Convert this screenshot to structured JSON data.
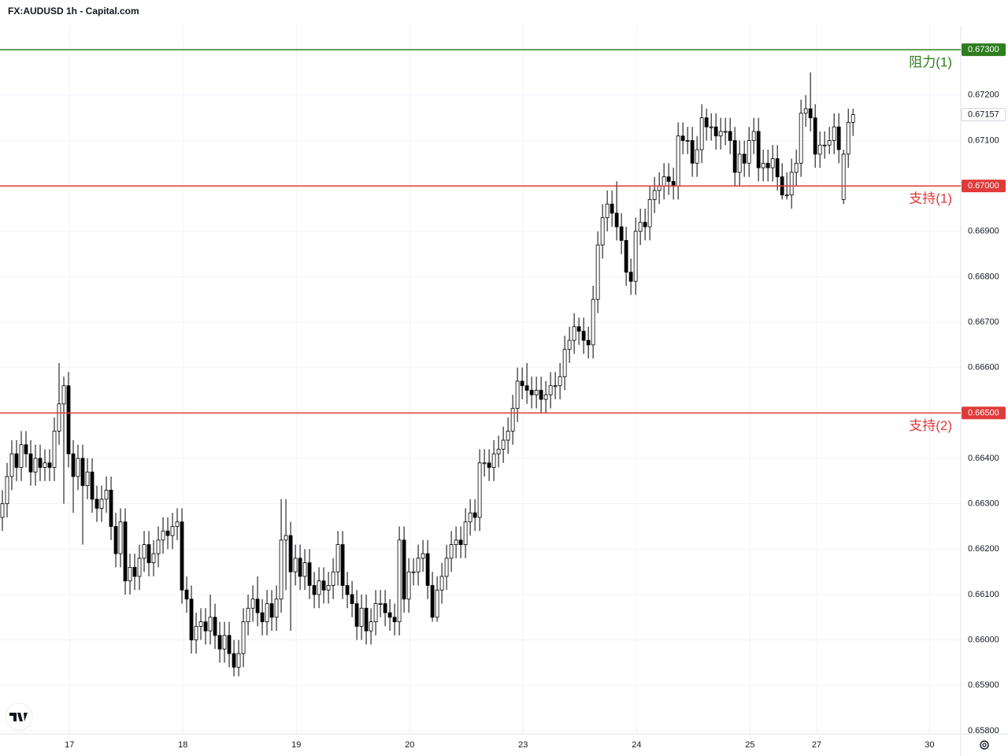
{
  "chart_data": {
    "type": "candlestick",
    "title": "FX:AUDUSD 1h - Capital.com",
    "candles": [
      [
        0.6627,
        0.6633,
        0.6624,
        0.663
      ],
      [
        0.663,
        0.6639,
        0.6627,
        0.6636
      ],
      [
        0.6636,
        0.6644,
        0.6633,
        0.6641
      ],
      [
        0.6641,
        0.6644,
        0.6635,
        0.6638
      ],
      [
        0.6638,
        0.6646,
        0.6635,
        0.6643
      ],
      [
        0.6643,
        0.6646,
        0.6638,
        0.6641
      ],
      [
        0.6641,
        0.6644,
        0.6634,
        0.6637
      ],
      [
        0.6637,
        0.6643,
        0.6634,
        0.664
      ],
      [
        0.664,
        0.6643,
        0.6635,
        0.6638
      ],
      [
        0.6638,
        0.6642,
        0.6635,
        0.6639
      ],
      [
        0.6639,
        0.6642,
        0.6635,
        0.6638
      ],
      [
        0.6638,
        0.6649,
        0.6635,
        0.6646
      ],
      [
        0.6646,
        0.6661,
        0.6643,
        0.6652
      ],
      [
        0.6652,
        0.6658,
        0.663,
        0.6656
      ],
      [
        0.6656,
        0.6659,
        0.6638,
        0.6641
      ],
      [
        0.6641,
        0.6644,
        0.6628,
        0.6636
      ],
      [
        0.6636,
        0.6643,
        0.6633,
        0.664
      ],
      [
        0.664,
        0.6643,
        0.6621,
        0.6634
      ],
      [
        0.6634,
        0.664,
        0.6631,
        0.6637
      ],
      [
        0.6637,
        0.664,
        0.6628,
        0.6631
      ],
      [
        0.6631,
        0.6634,
        0.6626,
        0.6629
      ],
      [
        0.6629,
        0.6634,
        0.6626,
        0.6631
      ],
      [
        0.6631,
        0.6636,
        0.6628,
        0.6633
      ],
      [
        0.6633,
        0.6636,
        0.6622,
        0.6625
      ],
      [
        0.6625,
        0.6628,
        0.6616,
        0.6619
      ],
      [
        0.6619,
        0.6629,
        0.6616,
        0.6626
      ],
      [
        0.6626,
        0.6629,
        0.661,
        0.6613
      ],
      [
        0.6613,
        0.6619,
        0.661,
        0.6616
      ],
      [
        0.6616,
        0.6619,
        0.6611,
        0.6614
      ],
      [
        0.6614,
        0.6621,
        0.6611,
        0.6618
      ],
      [
        0.6618,
        0.6624,
        0.6615,
        0.6621
      ],
      [
        0.6621,
        0.6624,
        0.6614,
        0.6617
      ],
      [
        0.6617,
        0.6622,
        0.6614,
        0.6619
      ],
      [
        0.6619,
        0.6625,
        0.6616,
        0.6622
      ],
      [
        0.6622,
        0.6627,
        0.6619,
        0.6624
      ],
      [
        0.6624,
        0.6627,
        0.662,
        0.6623
      ],
      [
        0.6623,
        0.6628,
        0.662,
        0.6625
      ],
      [
        0.6625,
        0.6629,
        0.6622,
        0.6626
      ],
      [
        0.6626,
        0.6629,
        0.6608,
        0.6611
      ],
      [
        0.6611,
        0.6614,
        0.6606,
        0.6609
      ],
      [
        0.6609,
        0.6612,
        0.6597,
        0.66
      ],
      [
        0.66,
        0.6606,
        0.6597,
        0.6603
      ],
      [
        0.6603,
        0.6607,
        0.66,
        0.6604
      ],
      [
        0.6604,
        0.6607,
        0.6599,
        0.6602
      ],
      [
        0.6602,
        0.661,
        0.6599,
        0.6605
      ],
      [
        0.6605,
        0.6608,
        0.6598,
        0.6601
      ],
      [
        0.6601,
        0.6604,
        0.6595,
        0.6598
      ],
      [
        0.6598,
        0.6604,
        0.6595,
        0.6601
      ],
      [
        0.6601,
        0.6604,
        0.6594,
        0.6597
      ],
      [
        0.6597,
        0.66,
        0.6592,
        0.6594
      ],
      [
        0.6594,
        0.66,
        0.6592,
        0.6597
      ],
      [
        0.6597,
        0.6607,
        0.6594,
        0.6604
      ],
      [
        0.6604,
        0.661,
        0.6601,
        0.6607
      ],
      [
        0.6607,
        0.6612,
        0.6604,
        0.6609
      ],
      [
        0.6609,
        0.6614,
        0.6603,
        0.6606
      ],
      [
        0.6606,
        0.6609,
        0.6601,
        0.6604
      ],
      [
        0.6604,
        0.6611,
        0.6601,
        0.6608
      ],
      [
        0.6608,
        0.6611,
        0.6602,
        0.6605
      ],
      [
        0.6605,
        0.6612,
        0.6602,
        0.6609
      ],
      [
        0.6609,
        0.6631,
        0.6606,
        0.6622
      ],
      [
        0.6622,
        0.6631,
        0.6611,
        0.6623
      ],
      [
        0.6623,
        0.6626,
        0.6602,
        0.6615
      ],
      [
        0.6615,
        0.6621,
        0.6612,
        0.6618
      ],
      [
        0.6618,
        0.6621,
        0.6611,
        0.6614
      ],
      [
        0.6614,
        0.662,
        0.6611,
        0.6617
      ],
      [
        0.6617,
        0.662,
        0.6609,
        0.6612
      ],
      [
        0.6612,
        0.6615,
        0.6607,
        0.661
      ],
      [
        0.661,
        0.6616,
        0.6607,
        0.6613
      ],
      [
        0.6613,
        0.6616,
        0.6608,
        0.6611
      ],
      [
        0.6611,
        0.6615,
        0.6608,
        0.6612
      ],
      [
        0.6612,
        0.6618,
        0.6609,
        0.6615
      ],
      [
        0.6615,
        0.6624,
        0.6612,
        0.6621
      ],
      [
        0.6621,
        0.6624,
        0.6609,
        0.6612
      ],
      [
        0.6612,
        0.6615,
        0.6607,
        0.661
      ],
      [
        0.661,
        0.6613,
        0.6605,
        0.6608
      ],
      [
        0.6608,
        0.6611,
        0.66,
        0.6603
      ],
      [
        0.6603,
        0.661,
        0.66,
        0.6607
      ],
      [
        0.6607,
        0.661,
        0.6599,
        0.6602
      ],
      [
        0.6602,
        0.6607,
        0.6599,
        0.6604
      ],
      [
        0.6604,
        0.6611,
        0.6601,
        0.6608
      ],
      [
        0.6608,
        0.6611,
        0.6605,
        0.6608
      ],
      [
        0.6608,
        0.6611,
        0.6603,
        0.6606
      ],
      [
        0.6606,
        0.6609,
        0.6602,
        0.6605
      ],
      [
        0.6605,
        0.6608,
        0.6601,
        0.6604
      ],
      [
        0.6604,
        0.6625,
        0.6601,
        0.6622
      ],
      [
        0.6622,
        0.6625,
        0.6606,
        0.6609
      ],
      [
        0.6609,
        0.6618,
        0.6606,
        0.6615
      ],
      [
        0.6615,
        0.6618,
        0.6612,
        0.6615
      ],
      [
        0.6615,
        0.6621,
        0.6612,
        0.6618
      ],
      [
        0.6618,
        0.6622,
        0.6615,
        0.6619
      ],
      [
        0.6619,
        0.6622,
        0.6609,
        0.6612
      ],
      [
        0.6612,
        0.6615,
        0.6604,
        0.6605
      ],
      [
        0.6605,
        0.6614,
        0.6604,
        0.6611
      ],
      [
        0.6611,
        0.6617,
        0.6608,
        0.6614
      ],
      [
        0.6614,
        0.6621,
        0.6611,
        0.6618
      ],
      [
        0.6618,
        0.6624,
        0.6615,
        0.6621
      ],
      [
        0.6621,
        0.6625,
        0.6618,
        0.6622
      ],
      [
        0.6622,
        0.6625,
        0.6618,
        0.6621
      ],
      [
        0.6621,
        0.6629,
        0.6618,
        0.6626
      ],
      [
        0.6626,
        0.6631,
        0.6623,
        0.6628
      ],
      [
        0.6628,
        0.6631,
        0.6624,
        0.6627
      ],
      [
        0.6627,
        0.6642,
        0.6624,
        0.6639
      ],
      [
        0.6639,
        0.6642,
        0.6636,
        0.6639
      ],
      [
        0.6639,
        0.6642,
        0.6635,
        0.6638
      ],
      [
        0.6638,
        0.6644,
        0.6635,
        0.6641
      ],
      [
        0.6641,
        0.6645,
        0.6638,
        0.6642
      ],
      [
        0.6642,
        0.6647,
        0.6639,
        0.6644
      ],
      [
        0.6644,
        0.6649,
        0.6641,
        0.6646
      ],
      [
        0.6646,
        0.6654,
        0.6643,
        0.6651
      ],
      [
        0.6651,
        0.666,
        0.6648,
        0.6657
      ],
      [
        0.6657,
        0.666,
        0.6653,
        0.6656
      ],
      [
        0.6656,
        0.6661,
        0.6652,
        0.6655
      ],
      [
        0.6655,
        0.6658,
        0.6651,
        0.6654
      ],
      [
        0.6654,
        0.6658,
        0.6651,
        0.6655
      ],
      [
        0.6655,
        0.6658,
        0.665,
        0.6653
      ],
      [
        0.6653,
        0.6657,
        0.665,
        0.6654
      ],
      [
        0.6654,
        0.6659,
        0.6651,
        0.6656
      ],
      [
        0.6656,
        0.6659,
        0.6653,
        0.6656
      ],
      [
        0.6656,
        0.6661,
        0.6653,
        0.6658
      ],
      [
        0.6658,
        0.6667,
        0.6655,
        0.6664
      ],
      [
        0.6664,
        0.6669,
        0.6661,
        0.6666
      ],
      [
        0.6666,
        0.6672,
        0.6663,
        0.6669
      ],
      [
        0.6669,
        0.6671,
        0.6665,
        0.6668
      ],
      [
        0.6668,
        0.6671,
        0.6663,
        0.6666
      ],
      [
        0.6666,
        0.6669,
        0.6662,
        0.6665
      ],
      [
        0.6665,
        0.6678,
        0.6662,
        0.6675
      ],
      [
        0.6675,
        0.669,
        0.6672,
        0.6687
      ],
      [
        0.6687,
        0.6696,
        0.6684,
        0.6693
      ],
      [
        0.6693,
        0.6699,
        0.669,
        0.6696
      ],
      [
        0.6696,
        0.6699,
        0.6691,
        0.6694
      ],
      [
        0.6694,
        0.6701,
        0.6688,
        0.6691
      ],
      [
        0.6691,
        0.6694,
        0.6685,
        0.6688
      ],
      [
        0.6688,
        0.6691,
        0.6678,
        0.6681
      ],
      [
        0.6681,
        0.6684,
        0.6676,
        0.6679
      ],
      [
        0.6679,
        0.6693,
        0.6676,
        0.669
      ],
      [
        0.669,
        0.6695,
        0.6687,
        0.6692
      ],
      [
        0.6692,
        0.6695,
        0.6688,
        0.6691
      ],
      [
        0.6691,
        0.67,
        0.6688,
        0.6697
      ],
      [
        0.6697,
        0.6702,
        0.6694,
        0.6699
      ],
      [
        0.6699,
        0.6703,
        0.6696,
        0.67
      ],
      [
        0.67,
        0.6705,
        0.6697,
        0.6702
      ],
      [
        0.6702,
        0.6705,
        0.6698,
        0.6701
      ],
      [
        0.6701,
        0.6704,
        0.6697,
        0.67
      ],
      [
        0.67,
        0.6714,
        0.6697,
        0.6711
      ],
      [
        0.6711,
        0.6714,
        0.6707,
        0.671
      ],
      [
        0.671,
        0.6713,
        0.6707,
        0.671
      ],
      [
        0.671,
        0.6713,
        0.6702,
        0.6705
      ],
      [
        0.6705,
        0.6711,
        0.6702,
        0.6708
      ],
      [
        0.6708,
        0.6718,
        0.6705,
        0.6715
      ],
      [
        0.6715,
        0.6717,
        0.671,
        0.6713
      ],
      [
        0.6713,
        0.6716,
        0.671,
        0.6713
      ],
      [
        0.6713,
        0.6716,
        0.6708,
        0.6711
      ],
      [
        0.6711,
        0.6715,
        0.6708,
        0.6712
      ],
      [
        0.6712,
        0.6715,
        0.6709,
        0.6712
      ],
      [
        0.6712,
        0.6715,
        0.6707,
        0.671
      ],
      [
        0.671,
        0.6713,
        0.67,
        0.6703
      ],
      [
        0.6703,
        0.671,
        0.67,
        0.6707
      ],
      [
        0.6707,
        0.671,
        0.6702,
        0.6705
      ],
      [
        0.6705,
        0.6713,
        0.6702,
        0.671
      ],
      [
        0.671,
        0.6715,
        0.6707,
        0.6712
      ],
      [
        0.6712,
        0.6715,
        0.6701,
        0.6704
      ],
      [
        0.6704,
        0.6708,
        0.6701,
        0.6705
      ],
      [
        0.6705,
        0.6708,
        0.6701,
        0.6704
      ],
      [
        0.6704,
        0.6709,
        0.6701,
        0.6706
      ],
      [
        0.6706,
        0.6709,
        0.6699,
        0.6702
      ],
      [
        0.6702,
        0.6705,
        0.6697,
        0.6698
      ],
      [
        0.6698,
        0.6703,
        0.6697,
        0.6698
      ],
      [
        0.6698,
        0.6706,
        0.6695,
        0.6703
      ],
      [
        0.6703,
        0.6708,
        0.67,
        0.6705
      ],
      [
        0.6705,
        0.6719,
        0.6702,
        0.6716
      ],
      [
        0.6716,
        0.672,
        0.6713,
        0.6717
      ],
      [
        0.6717,
        0.6725,
        0.6712,
        0.6715
      ],
      [
        0.6715,
        0.6718,
        0.6704,
        0.6707
      ],
      [
        0.6707,
        0.6712,
        0.6704,
        0.6709
      ],
      [
        0.6709,
        0.6712,
        0.6706,
        0.6709
      ],
      [
        0.6709,
        0.6713,
        0.6707,
        0.671
      ],
      [
        0.671,
        0.6716,
        0.6707,
        0.6713
      ],
      [
        0.6713,
        0.6716,
        0.6705,
        0.6708
      ],
      [
        0.6697,
        0.6708,
        0.6696,
        0.6707
      ],
      [
        0.6707,
        0.6717,
        0.6704,
        0.6714
      ],
      [
        0.6714,
        0.6717,
        0.6711,
        0.67157
      ]
    ],
    "up_color": "#ffffff",
    "down_color": "#000000",
    "wick_color": "#000000",
    "ylim": [
      0.65793,
      0.67354
    ],
    "yticks": [
      {
        "value": 0.658,
        "label": "0.65800"
      },
      {
        "value": 0.659,
        "label": "0.65900"
      },
      {
        "value": 0.66,
        "label": "0.66000"
      },
      {
        "value": 0.661,
        "label": "0.66100"
      },
      {
        "value": 0.662,
        "label": "0.66200"
      },
      {
        "value": 0.663,
        "label": "0.66300"
      },
      {
        "value": 0.664,
        "label": "0.66400"
      },
      {
        "value": 0.666,
        "label": "0.66600"
      },
      {
        "value": 0.667,
        "label": "0.66700"
      },
      {
        "value": 0.668,
        "label": "0.66800"
      },
      {
        "value": 0.669,
        "label": "0.66900"
      },
      {
        "value": 0.671,
        "label": "0.67100"
      },
      {
        "value": 0.672,
        "label": "0.67200"
      }
    ],
    "xlim": [
      -0.5,
      202.8
    ],
    "xticks": [
      {
        "value": 14.2,
        "label": "17"
      },
      {
        "value": 38.2,
        "label": "18"
      },
      {
        "value": 62.2,
        "label": "19"
      },
      {
        "value": 86.2,
        "label": "20"
      },
      {
        "value": 110.2,
        "label": "23"
      },
      {
        "value": 134.2,
        "label": "24"
      },
      {
        "value": 158.2,
        "label": "25"
      },
      {
        "value": 172.3,
        "label": "27"
      },
      {
        "value": 196.2,
        "label": "30"
      }
    ],
    "grid": true,
    "levels": [
      {
        "value": 0.673,
        "price_label": "0.67300",
        "name": "阻力(1)",
        "color": "#2e7d1f"
      },
      {
        "value": 0.67,
        "price_label": "0.67000",
        "name": "支持(1)",
        "color": "#e03a3a"
      },
      {
        "value": 0.665,
        "price_label": "0.66500",
        "name": "支持(2)",
        "color": "#e03a3a"
      }
    ],
    "last_price_label": "0.67157"
  }
}
